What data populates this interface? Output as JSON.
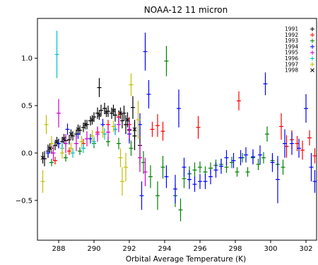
{
  "chart_data": {
    "type": "scatter",
    "title": "NOAA-12 11 micron",
    "xlabel": "Orbital Average Temperature (K)",
    "ylabel": "",
    "xlim": [
      286.8,
      302.6
    ],
    "ylim": [
      -0.92,
      1.42
    ],
    "xticks": [
      "288",
      "290",
      "292",
      "294",
      "296",
      "298",
      "300",
      "302"
    ],
    "yticks": [
      "−0.5",
      "0.0",
      "0.5",
      "1.0"
    ],
    "grid": false,
    "legend_position": "top-right",
    "error_bars": true,
    "series": [
      {
        "name": "1991",
        "color": "#000000",
        "points": [
          [
            287.2,
            -0.06,
            0.08
          ],
          [
            287.4,
            0.02,
            0.07
          ],
          [
            287.6,
            0.05,
            0.06
          ],
          [
            287.8,
            0.08,
            0.05
          ],
          [
            288.0,
            0.1,
            0.05
          ],
          [
            288.2,
            0.12,
            0.05
          ],
          [
            288.4,
            0.13,
            0.05
          ],
          [
            288.6,
            0.14,
            0.05
          ],
          [
            288.8,
            0.18,
            0.05
          ],
          [
            289.0,
            0.2,
            0.05
          ],
          [
            289.2,
            0.24,
            0.05
          ],
          [
            289.4,
            0.27,
            0.05
          ],
          [
            289.6,
            0.3,
            0.05
          ],
          [
            289.8,
            0.34,
            0.05
          ],
          [
            290.0,
            0.38,
            0.05
          ],
          [
            290.2,
            0.42,
            0.06
          ],
          [
            290.4,
            0.45,
            0.06
          ],
          [
            290.6,
            0.47,
            0.06
          ],
          [
            290.8,
            0.44,
            0.06
          ],
          [
            291.0,
            0.42,
            0.06
          ],
          [
            291.2,
            0.4,
            0.07
          ],
          [
            291.4,
            0.38,
            0.07
          ],
          [
            291.6,
            0.34,
            0.08
          ],
          [
            291.8,
            0.3,
            0.1
          ],
          [
            292.0,
            0.24,
            0.12
          ],
          [
            292.3,
            0.18,
            0.15
          ],
          [
            292.6,
            0.08,
            0.2
          ],
          [
            290.3,
            0.69,
            0.1
          ],
          [
            291.7,
            0.42,
            0.08
          ],
          [
            292.2,
            0.48,
            0.12
          ]
        ]
      },
      {
        "name": "1992",
        "color": "#ff0000",
        "points": [
          [
            287.8,
            -0.08,
            0.04
          ],
          [
            288.6,
            0.02,
            0.04
          ],
          [
            289.4,
            0.1,
            0.05
          ],
          [
            290.2,
            0.22,
            0.05
          ],
          [
            290.8,
            0.3,
            0.05
          ],
          [
            291.4,
            0.38,
            0.06
          ],
          [
            292.0,
            0.3,
            0.08
          ],
          [
            293.3,
            0.25,
            0.08
          ],
          [
            293.6,
            0.29,
            0.12
          ],
          [
            293.9,
            0.23,
            0.1
          ],
          [
            295.9,
            0.27,
            0.12
          ],
          [
            298.2,
            0.55,
            0.1
          ],
          [
            300.6,
            0.28,
            0.14
          ],
          [
            300.9,
            0.07,
            0.12
          ],
          [
            301.2,
            0.14,
            0.1
          ],
          [
            301.5,
            0.1,
            0.08
          ],
          [
            301.8,
            0.03,
            0.1
          ],
          [
            302.2,
            0.16,
            0.08
          ],
          [
            302.5,
            -0.03,
            0.08
          ]
        ]
      },
      {
        "name": "1993",
        "color": "#008000",
        "points": [
          [
            287.6,
            -0.1,
            0.04
          ],
          [
            288.4,
            -0.05,
            0.04
          ],
          [
            289.2,
            0.02,
            0.04
          ],
          [
            290.0,
            0.1,
            0.05
          ],
          [
            290.8,
            0.12,
            0.05
          ],
          [
            291.4,
            0.1,
            0.06
          ],
          [
            292.1,
            0.05,
            0.08
          ],
          [
            292.8,
            -0.1,
            0.12
          ],
          [
            293.2,
            -0.25,
            0.12
          ],
          [
            293.6,
            -0.45,
            0.15
          ],
          [
            293.9,
            -0.15,
            0.12
          ],
          [
            294.1,
            0.97,
            0.16
          ],
          [
            294.6,
            -0.45,
            0.12
          ],
          [
            294.9,
            -0.6,
            0.12
          ],
          [
            295.1,
            -0.27,
            0.1
          ],
          [
            295.4,
            -0.22,
            0.08
          ],
          [
            295.7,
            -0.18,
            0.08
          ],
          [
            296.0,
            -0.15,
            0.06
          ],
          [
            296.3,
            -0.2,
            0.06
          ],
          [
            296.6,
            -0.16,
            0.06
          ],
          [
            296.9,
            -0.13,
            0.06
          ],
          [
            297.2,
            -0.12,
            0.06
          ],
          [
            297.5,
            -0.15,
            0.06
          ],
          [
            297.8,
            -0.1,
            0.06
          ],
          [
            298.1,
            -0.2,
            0.05
          ],
          [
            298.4,
            -0.05,
            0.05
          ],
          [
            298.7,
            -0.2,
            0.05
          ],
          [
            299.0,
            -0.05,
            0.06
          ],
          [
            299.3,
            -0.12,
            0.06
          ],
          [
            299.6,
            -0.05,
            0.06
          ],
          [
            299.8,
            0.2,
            0.08
          ],
          [
            300.1,
            -0.08,
            0.06
          ],
          [
            300.4,
            -0.12,
            0.06
          ],
          [
            300.7,
            -0.15,
            0.08
          ]
        ]
      },
      {
        "name": "1994",
        "color": "#0000ff",
        "points": [
          [
            287.4,
            0.0,
            0.05
          ],
          [
            288.0,
            0.1,
            0.05
          ],
          [
            288.5,
            0.25,
            0.06
          ],
          [
            289.1,
            0.2,
            0.05
          ],
          [
            289.8,
            0.15,
            0.05
          ],
          [
            290.5,
            0.3,
            0.06
          ],
          [
            291.2,
            0.25,
            0.06
          ],
          [
            292.0,
            0.2,
            0.1
          ],
          [
            292.6,
            0.3,
            0.12
          ],
          [
            292.9,
            1.07,
            0.2
          ],
          [
            292.7,
            -0.45,
            0.15
          ],
          [
            293.1,
            0.62,
            0.15
          ],
          [
            294.6,
            -0.38,
            0.15
          ],
          [
            294.8,
            0.47,
            0.2
          ],
          [
            294.1,
            -0.25,
            0.12
          ],
          [
            295.1,
            -0.15,
            0.1
          ],
          [
            295.4,
            -0.28,
            0.1
          ],
          [
            295.7,
            -0.33,
            0.08
          ],
          [
            296.0,
            -0.3,
            0.08
          ],
          [
            296.3,
            -0.3,
            0.08
          ],
          [
            296.6,
            -0.25,
            0.08
          ],
          [
            296.9,
            -0.18,
            0.08
          ],
          [
            297.2,
            -0.14,
            0.08
          ],
          [
            297.5,
            -0.05,
            0.08
          ],
          [
            297.9,
            -0.08,
            0.08
          ],
          [
            298.3,
            -0.05,
            0.08
          ],
          [
            298.6,
            -0.02,
            0.08
          ],
          [
            299.0,
            -0.04,
            0.08
          ],
          [
            299.4,
            -0.02,
            0.1
          ],
          [
            299.7,
            0.73,
            0.12
          ],
          [
            300.1,
            -0.1,
            0.1
          ],
          [
            300.4,
            -0.28,
            0.25
          ],
          [
            300.8,
            0.1,
            0.15
          ],
          [
            301.2,
            0.1,
            0.12
          ],
          [
            301.6,
            0.05,
            0.1
          ],
          [
            302.0,
            0.47,
            0.15
          ],
          [
            302.3,
            -0.15,
            0.15
          ],
          [
            302.5,
            -0.3,
            0.12
          ]
        ]
      },
      {
        "name": "1995",
        "color": "#cc00cc",
        "points": [
          [
            287.7,
            0.0,
            0.08
          ],
          [
            288.0,
            0.42,
            0.15
          ],
          [
            288.4,
            0.1,
            0.1
          ],
          [
            289.0,
            0.1,
            0.08
          ],
          [
            289.6,
            0.15,
            0.08
          ],
          [
            290.2,
            0.2,
            0.08
          ],
          [
            290.8,
            0.22,
            0.08
          ],
          [
            291.4,
            0.3,
            0.08
          ],
          [
            292.0,
            0.25,
            0.1
          ],
          [
            292.6,
            -0.05,
            0.15
          ],
          [
            292.9,
            -0.2,
            0.15
          ]
        ]
      },
      {
        "name": "1996",
        "color": "#00bfbf",
        "points": [
          [
            287.9,
            1.04,
            0.25
          ],
          [
            288.2,
            0.05,
            0.06
          ],
          [
            288.8,
            0.0,
            0.05
          ],
          [
            289.4,
            0.05,
            0.05
          ],
          [
            290.0,
            0.12,
            0.05
          ],
          [
            290.6,
            0.2,
            0.06
          ],
          [
            291.2,
            0.25,
            0.06
          ]
        ]
      },
      {
        "name": "1997",
        "color": "#bfbf00",
        "points": [
          [
            287.1,
            -0.3,
            0.12
          ],
          [
            287.3,
            0.3,
            0.1
          ],
          [
            287.6,
            0.1,
            0.08
          ],
          [
            288.2,
            0.0,
            0.06
          ],
          [
            288.7,
            0.05,
            0.06
          ],
          [
            289.3,
            0.12,
            0.06
          ],
          [
            289.9,
            0.18,
            0.06
          ],
          [
            290.5,
            0.22,
            0.06
          ],
          [
            291.1,
            0.28,
            0.06
          ],
          [
            291.5,
            -0.05,
            0.1
          ],
          [
            291.6,
            -0.3,
            0.15
          ],
          [
            291.8,
            -0.15,
            0.15
          ],
          [
            292.1,
            0.72,
            0.12
          ],
          [
            292.5,
            0.35,
            0.2
          ]
        ]
      },
      {
        "name": "1998",
        "color": "#000000",
        "points": [
          [
            287.1,
            -0.05,
            0.06
          ],
          [
            287.5,
            0.05,
            0.05
          ],
          [
            287.9,
            0.12,
            0.05
          ],
          [
            288.3,
            0.15,
            0.05
          ],
          [
            288.7,
            0.2,
            0.05
          ],
          [
            289.1,
            0.25,
            0.05
          ],
          [
            289.5,
            0.3,
            0.05
          ],
          [
            289.9,
            0.35,
            0.05
          ],
          [
            290.3,
            0.4,
            0.05
          ],
          [
            290.7,
            0.43,
            0.05
          ],
          [
            291.1,
            0.45,
            0.06
          ],
          [
            291.5,
            0.42,
            0.06
          ],
          [
            291.9,
            0.35,
            0.08
          ],
          [
            292.3,
            0.25,
            0.1
          ]
        ]
      }
    ]
  }
}
